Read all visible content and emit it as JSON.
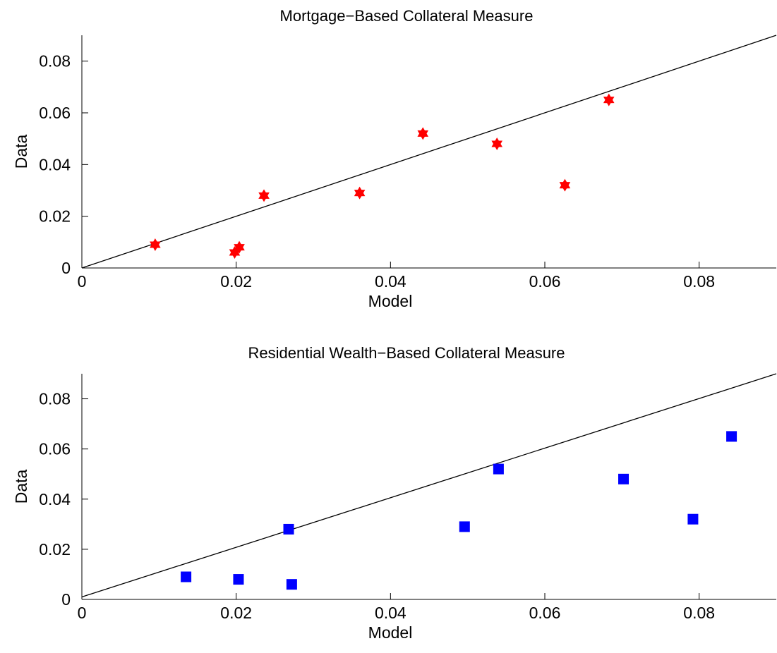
{
  "chart_data": [
    {
      "type": "scatter",
      "title": "Mortgage−Based Collateral Measure",
      "xlabel": "Model",
      "ylabel": "Data",
      "xlim": [
        0,
        0.09
      ],
      "ylim": [
        0,
        0.09
      ],
      "xticks": [
        "0",
        "0.02",
        "0.04",
        "0.06",
        "0.08"
      ],
      "yticks": [
        "0",
        "0.02",
        "0.04",
        "0.06",
        "0.08"
      ],
      "grid": false,
      "marker": "hexagram",
      "color": "#ff0000",
      "reference_line": {
        "x": [
          0,
          0.09
        ],
        "y": [
          0,
          0.09
        ]
      },
      "x": [
        0.0095,
        0.0198,
        0.0204,
        0.0236,
        0.036,
        0.0442,
        0.0538,
        0.0626,
        0.0683
      ],
      "y": [
        0.009,
        0.006,
        0.008,
        0.028,
        0.029,
        0.052,
        0.048,
        0.032,
        0.065
      ]
    },
    {
      "type": "scatter",
      "title": "Residential Wealth−Based Collateral Measure",
      "xlabel": "Model",
      "ylabel": "Data",
      "xlim": [
        0,
        0.09
      ],
      "ylim": [
        0,
        0.09
      ],
      "xticks": [
        "0",
        "0.02",
        "0.04",
        "0.06",
        "0.08"
      ],
      "yticks": [
        "0",
        "0.02",
        "0.04",
        "0.06",
        "0.08"
      ],
      "grid": false,
      "marker": "square",
      "color": "#0000ff",
      "reference_line": {
        "x": [
          0,
          0.09
        ],
        "y": [
          0.001,
          0.09
        ]
      },
      "x": [
        0.0135,
        0.0203,
        0.0268,
        0.0272,
        0.0496,
        0.054,
        0.0702,
        0.0792,
        0.0842
      ],
      "y": [
        0.009,
        0.008,
        0.028,
        0.006,
        0.029,
        0.052,
        0.048,
        0.032,
        0.065
      ]
    }
  ]
}
